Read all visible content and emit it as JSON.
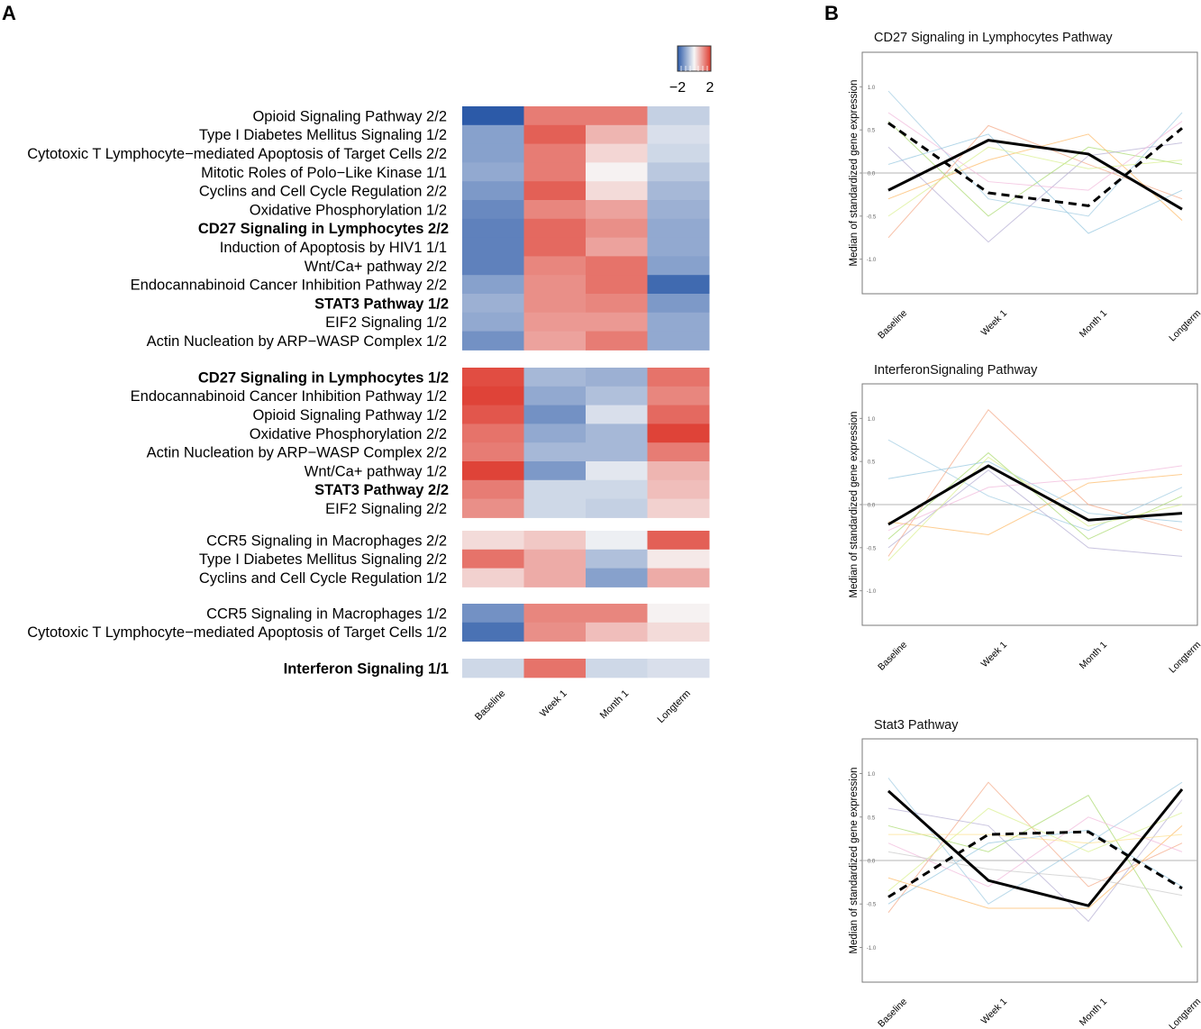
{
  "panels": {
    "a": "A",
    "b": "B"
  },
  "chart_data": [
    {
      "type": "heatmap",
      "panel": "A",
      "columns": [
        "Baseline",
        "Week 1",
        "Month 1",
        "Longterm"
      ],
      "legend": {
        "min": -2,
        "max": 2,
        "min_label": "−2",
        "max_label": "2"
      },
      "groups": [
        {
          "rows": [
            {
              "label": "Opioid Signaling Pathway 2/2",
              "bold": false,
              "values": [
                -2.0,
                1.3,
                1.3,
                -0.5
              ]
            },
            {
              "label": "Type I Diabetes Mellitus Signaling 1/2",
              "bold": false,
              "values": [
                -1.1,
                1.6,
                0.7,
                -0.3
              ]
            },
            {
              "label": "Cytotoxic T Lymphocyte−mediated Apoptosis of Target Cells 2/2",
              "bold": false,
              "values": [
                -1.1,
                1.3,
                0.35,
                -0.4
              ]
            },
            {
              "label": "Mitotic Roles of Polo−Like Kinase 1/1",
              "bold": false,
              "values": [
                -1.0,
                1.3,
                0.05,
                -0.6
              ]
            },
            {
              "label": "Cyclins and Cell Cycle Regulation 2/2",
              "bold": false,
              "values": [
                -1.2,
                1.6,
                0.3,
                -0.8
              ]
            },
            {
              "label": "Oxidative Phosphorylation 1/2",
              "bold": false,
              "values": [
                -1.4,
                1.2,
                0.9,
                -0.9
              ]
            },
            {
              "label": "CD27 Signaling in Lymphocytes 2/2",
              "bold": true,
              "values": [
                -1.5,
                1.5,
                1.1,
                -1.0
              ]
            },
            {
              "label": "Induction of Apoptosis by HIV1 1/1",
              "bold": false,
              "values": [
                -1.5,
                1.5,
                0.9,
                -1.0
              ]
            },
            {
              "label": "Wnt/Ca+ pathway 2/2",
              "bold": false,
              "values": [
                -1.5,
                1.2,
                1.4,
                -1.1
              ]
            },
            {
              "label": "Endocannabinoid Cancer Inhibition Pathway 2/2",
              "bold": false,
              "values": [
                -1.1,
                1.1,
                1.4,
                -1.8
              ]
            },
            {
              "label": "STAT3 Pathway 1/2",
              "bold": true,
              "values": [
                -0.9,
                1.1,
                1.2,
                -1.2
              ]
            },
            {
              "label": "EIF2 Signaling 1/2",
              "bold": false,
              "values": [
                -1.0,
                1.0,
                1.0,
                -1.0
              ]
            },
            {
              "label": "Actin Nucleation by ARP−WASP Complex 1/2",
              "bold": false,
              "values": [
                -1.3,
                0.9,
                1.3,
                -1.0
              ]
            }
          ]
        },
        {
          "rows": [
            {
              "label": "CD27 Signaling in Lymphocytes 1/2",
              "bold": true,
              "values": [
                1.8,
                -0.8,
                -0.9,
                1.4
              ]
            },
            {
              "label": "Endocannabinoid Cancer Inhibition Pathway 1/2",
              "bold": false,
              "values": [
                1.9,
                -1.0,
                -0.7,
                1.2
              ]
            },
            {
              "label": "Opioid Signaling Pathway 1/2",
              "bold": false,
              "values": [
                1.7,
                -1.3,
                -0.3,
                1.5
              ]
            },
            {
              "label": "Oxidative Phosphorylation 2/2",
              "bold": false,
              "values": [
                1.4,
                -1.0,
                -0.8,
                1.9
              ]
            },
            {
              "label": "Actin Nucleation by ARP−WASP Complex 2/2",
              "bold": false,
              "values": [
                1.3,
                -0.8,
                -0.8,
                1.3
              ]
            },
            {
              "label": "Wnt/Ca+ pathway 1/2",
              "bold": false,
              "values": [
                1.9,
                -1.2,
                -0.2,
                0.7
              ]
            },
            {
              "label": "STAT3 Pathway 2/2",
              "bold": true,
              "values": [
                1.3,
                -0.4,
                -0.4,
                0.6
              ]
            },
            {
              "label": "EIF2 Signaling 2/2",
              "bold": false,
              "values": [
                1.1,
                -0.4,
                -0.5,
                0.4
              ]
            }
          ]
        },
        {
          "rows": [
            {
              "label": "CCR5 Signaling in Macrophages 2/2",
              "bold": false,
              "values": [
                0.3,
                0.5,
                -0.1,
                1.6
              ]
            },
            {
              "label": "Type I Diabetes Mellitus Signaling 2/2",
              "bold": false,
              "values": [
                1.4,
                0.8,
                -0.7,
                0.15
              ]
            },
            {
              "label": "Cyclins and Cell Cycle Regulation 1/2",
              "bold": false,
              "values": [
                0.4,
                0.8,
                -1.1,
                0.8
              ]
            }
          ]
        },
        {
          "rows": [
            {
              "label": "CCR5 Signaling in Macrophages 1/2",
              "bold": false,
              "values": [
                -1.3,
                1.2,
                1.2,
                0.05
              ]
            },
            {
              "label": "Cytotoxic T Lymphocyte−mediated Apoptosis of Target Cells 1/2",
              "bold": false,
              "values": [
                -1.7,
                1.1,
                0.6,
                0.3
              ]
            }
          ]
        },
        {
          "rows": [
            {
              "label": "Interferon Signaling 1/1",
              "bold": true,
              "values": [
                -0.4,
                1.4,
                -0.4,
                -0.3
              ]
            }
          ]
        }
      ]
    },
    {
      "type": "line",
      "panel": "B",
      "title": "CD27 Signaling in Lymphocytes Pathway",
      "ylabel": "Median of standardized gene expression",
      "categories": [
        "Baseline",
        "Week 1",
        "Month 1",
        "Longterm"
      ],
      "ylim": [
        -1.4,
        1.4
      ],
      "yticks": [
        -1.0,
        -0.5,
        0.0,
        0.5,
        1.0
      ],
      "ytick_labels": [
        "-1.0",
        "-0.5",
        "0.0",
        "0.5",
        "1.0"
      ],
      "series": [
        {
          "name": "CD27 Signaling in Lymphocytes 1/2",
          "style": "solid",
          "values": [
            -0.2,
            0.38,
            0.22,
            -0.42
          ]
        },
        {
          "name": "CD27 Signaling in Lymphocytes 2/2",
          "style": "dashed",
          "values": [
            0.58,
            -0.23,
            -0.38,
            0.52
          ]
        }
      ],
      "background": [
        {
          "values": [
            0.95,
            -0.3,
            -0.5,
            0.7
          ]
        },
        {
          "values": [
            -0.75,
            0.55,
            0.1,
            -0.3
          ]
        },
        {
          "values": [
            0.6,
            -0.5,
            0.3,
            0.1
          ]
        },
        {
          "values": [
            -0.3,
            0.15,
            0.45,
            -0.55
          ]
        },
        {
          "values": [
            0.3,
            -0.8,
            0.2,
            0.35
          ]
        },
        {
          "values": [
            0.1,
            0.45,
            -0.7,
            -0.2
          ]
        },
        {
          "values": [
            0.7,
            -0.1,
            -0.2,
            0.6
          ]
        },
        {
          "values": [
            -0.5,
            0.3,
            0.05,
            0.15
          ]
        }
      ]
    },
    {
      "type": "line",
      "panel": "B",
      "title": "InterferonSignaling Pathway",
      "ylabel": "Median of standardized gene expression",
      "categories": [
        "Baseline",
        "Week 1",
        "Month 1",
        "Longterm"
      ],
      "ylim": [
        -1.4,
        1.4
      ],
      "yticks": [
        -1.0,
        -0.5,
        0.0,
        0.5,
        1.0
      ],
      "ytick_labels": [
        "-1.0",
        "-0.5",
        "0.0",
        "0.5",
        "1.0"
      ],
      "series": [
        {
          "name": "Interferon Signaling 1/1",
          "style": "solid",
          "values": [
            -0.23,
            0.45,
            -0.18,
            -0.1
          ]
        }
      ],
      "background": [
        {
          "values": [
            0.75,
            0.1,
            -0.3,
            0.2
          ]
        },
        {
          "values": [
            -0.6,
            1.1,
            0.0,
            -0.3
          ]
        },
        {
          "values": [
            -0.4,
            0.6,
            -0.4,
            0.1
          ]
        },
        {
          "values": [
            -0.2,
            -0.35,
            0.25,
            0.35
          ]
        },
        {
          "values": [
            -0.5,
            0.4,
            -0.5,
            -0.6
          ]
        },
        {
          "values": [
            0.3,
            0.5,
            -0.1,
            -0.2
          ]
        },
        {
          "values": [
            -0.3,
            0.2,
            0.3,
            0.45
          ]
        },
        {
          "values": [
            -0.65,
            0.55,
            -0.25,
            0.0
          ]
        }
      ]
    },
    {
      "type": "line",
      "panel": "B",
      "title": "Stat3 Pathway",
      "ylabel": "Median of standardized gene expression",
      "categories": [
        "Baseline",
        "Week 1",
        "Month 1",
        "Longterm"
      ],
      "ylim": [
        -1.4,
        1.4
      ],
      "yticks": [
        -1.0,
        -0.5,
        0.0,
        0.5,
        1.0
      ],
      "ytick_labels": [
        "-1.0",
        "-0.5",
        "0.0",
        "0.5",
        "1.0"
      ],
      "series": [
        {
          "name": "STAT3 Pathway 1/2",
          "style": "solid",
          "values": [
            0.8,
            -0.23,
            -0.52,
            0.82
          ]
        },
        {
          "name": "STAT3 Pathway 2/2",
          "style": "dashed",
          "values": [
            -0.42,
            0.3,
            0.33,
            -0.32
          ]
        }
      ],
      "background": [
        {
          "values": [
            0.95,
            -0.5,
            0.2,
            0.9
          ]
        },
        {
          "values": [
            -0.6,
            0.9,
            -0.3,
            0.2
          ]
        },
        {
          "values": [
            0.4,
            0.1,
            0.75,
            -1.0
          ]
        },
        {
          "values": [
            -0.2,
            -0.55,
            -0.55,
            0.4
          ]
        },
        {
          "values": [
            0.6,
            0.4,
            -0.7,
            0.7
          ]
        },
        {
          "values": [
            -0.5,
            0.2,
            0.35,
            -0.3
          ]
        },
        {
          "values": [
            0.2,
            -0.3,
            0.5,
            0.1
          ]
        },
        {
          "values": [
            -0.35,
            0.6,
            0.1,
            0.55
          ]
        },
        {
          "values": [
            0.1,
            -0.1,
            -0.2,
            -0.4
          ]
        },
        {
          "values": [
            0.3,
            0.3,
            0.2,
            0.3
          ]
        }
      ]
    }
  ]
}
